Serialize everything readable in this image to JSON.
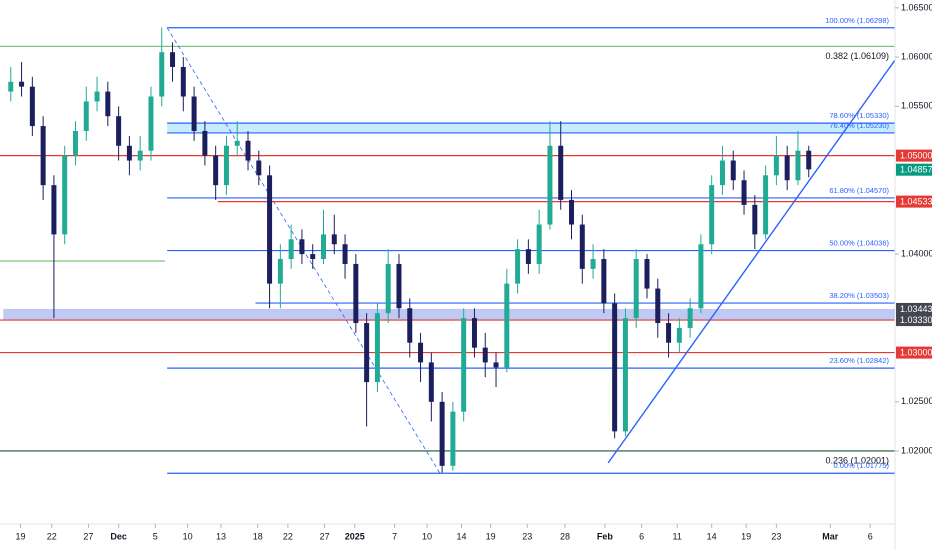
{
  "chart_data": {
    "type": "candlestick",
    "up_color": "#22ab94",
    "down_color": "#1b1f5e",
    "xlim": [
      -1,
      82
    ],
    "ylim": [
      1.013,
      1.0658
    ],
    "xticks": [
      {
        "value": 0.9,
        "label": "19"
      },
      {
        "value": 3.8,
        "label": "22"
      },
      {
        "value": 7.2,
        "label": "27"
      },
      {
        "value": 10,
        "label": "Dec"
      },
      {
        "value": 13.4,
        "label": "5"
      },
      {
        "value": 16.4,
        "label": "10"
      },
      {
        "value": 19.5,
        "label": "13"
      },
      {
        "value": 22.9,
        "label": "18"
      },
      {
        "value": 25.7,
        "label": "22"
      },
      {
        "value": 29.1,
        "label": "27"
      },
      {
        "value": 31.9,
        "label": "2025"
      },
      {
        "value": 35.6,
        "label": "7"
      },
      {
        "value": 38.6,
        "label": "10"
      },
      {
        "value": 41.8,
        "label": "14"
      },
      {
        "value": 44.5,
        "label": "19"
      },
      {
        "value": 47.9,
        "label": "23"
      },
      {
        "value": 51.4,
        "label": "28"
      },
      {
        "value": 55.1,
        "label": "Feb"
      },
      {
        "value": 58.5,
        "label": "6"
      },
      {
        "value": 61.8,
        "label": "11"
      },
      {
        "value": 65,
        "label": "14"
      },
      {
        "value": 68.2,
        "label": "19"
      },
      {
        "value": 71,
        "label": "23"
      },
      {
        "value": 76,
        "label": "Mar"
      },
      {
        "value": 79.7,
        "label": "6"
      }
    ],
    "yticks": [
      {
        "value": 1.065,
        "label": "1.06500"
      },
      {
        "value": 1.06,
        "label": "1.06000"
      },
      {
        "value": 1.055,
        "label": "1.05500"
      },
      {
        "value": 1.04,
        "label": "1.04000"
      },
      {
        "value": 1.025,
        "label": "1.02500"
      },
      {
        "value": 1.02,
        "label": "1.02000"
      }
    ],
    "open": [
      1.0565,
      1.0575,
      1.057,
      1.053,
      1.047,
      1.042,
      1.05,
      1.0525,
      1.0555,
      1.0565,
      1.054,
      1.051,
      1.0495,
      1.0505,
      1.056,
      1.0605,
      1.059,
      1.056,
      1.0525,
      1.05,
      1.047,
      1.051,
      1.0515,
      1.0495,
      1.048,
      1.037,
      1.0395,
      1.0415,
      1.04,
      1.0395,
      1.042,
      1.041,
      1.039,
      1.033,
      1.027,
      1.034,
      1.039,
      1.0345,
      1.031,
      1.029,
      1.025,
      1.0185,
      1.024,
      1.0335,
      1.0305,
      1.029,
      1.0285,
      1.037,
      1.0405,
      1.039,
      1.043,
      1.051,
      1.0455,
      1.043,
      1.0385,
      1.0395,
      1.035,
      1.022,
      1.0335,
      1.0395,
      1.0365,
      1.033,
      1.031,
      1.0325,
      1.0345,
      1.041,
      1.047,
      1.0495,
      1.0475,
      1.045,
      1.042,
      1.048,
      1.05,
      1.0475,
      1.0505
    ],
    "high": [
      1.059,
      1.0595,
      1.058,
      1.054,
      1.048,
      1.051,
      1.0535,
      1.057,
      1.058,
      1.0575,
      1.055,
      1.052,
      1.052,
      1.057,
      1.063,
      1.0615,
      1.06,
      1.057,
      1.0535,
      1.051,
      1.052,
      1.0535,
      1.0525,
      1.0505,
      1.049,
      1.041,
      1.043,
      1.0425,
      1.041,
      1.0445,
      1.044,
      1.042,
      1.04,
      1.034,
      1.035,
      1.0405,
      1.04,
      1.0355,
      1.032,
      1.03,
      1.026,
      1.025,
      1.0345,
      1.0345,
      1.032,
      1.03,
      1.0385,
      1.0415,
      1.0415,
      1.0445,
      1.0535,
      1.0535,
      1.0465,
      1.044,
      1.041,
      1.0405,
      1.036,
      1.0345,
      1.0405,
      1.04,
      1.0375,
      1.034,
      1.0335,
      1.0355,
      1.042,
      1.048,
      1.051,
      1.0505,
      1.0485,
      1.046,
      1.049,
      1.052,
      1.051,
      1.0525,
      1.051
    ],
    "low": [
      1.0555,
      1.056,
      1.052,
      1.0455,
      1.0335,
      1.041,
      1.049,
      1.0515,
      1.0545,
      1.053,
      1.0495,
      1.048,
      1.0485,
      1.0495,
      1.055,
      1.0575,
      1.0545,
      1.0515,
      1.049,
      1.0455,
      1.046,
      1.05,
      1.0485,
      1.047,
      1.0345,
      1.0345,
      1.0385,
      1.039,
      1.0385,
      1.039,
      1.04,
      1.0375,
      1.032,
      1.0225,
      1.026,
      1.033,
      1.0335,
      1.0295,
      1.027,
      1.023,
      1.0178,
      1.018,
      1.023,
      1.0295,
      1.0275,
      1.0265,
      1.028,
      1.036,
      1.038,
      1.038,
      1.0425,
      1.0445,
      1.0415,
      1.037,
      1.0375,
      1.034,
      1.0213,
      1.0215,
      1.0325,
      1.0355,
      1.0315,
      1.0295,
      1.03,
      1.0315,
      1.034,
      1.04,
      1.046,
      1.0465,
      1.044,
      1.0405,
      1.0415,
      1.047,
      1.0465,
      1.047,
      1.0478
    ],
    "close": [
      1.0575,
      1.057,
      1.053,
      1.047,
      1.042,
      1.05,
      1.0525,
      1.0555,
      1.0565,
      1.054,
      1.051,
      1.0495,
      1.0505,
      1.056,
      1.0605,
      1.059,
      1.056,
      1.0525,
      1.05,
      1.047,
      1.051,
      1.0515,
      1.0495,
      1.048,
      1.037,
      1.0395,
      1.0415,
      1.04,
      1.0395,
      1.042,
      1.041,
      1.039,
      1.033,
      1.027,
      1.034,
      1.039,
      1.0345,
      1.031,
      1.029,
      1.025,
      1.0185,
      1.024,
      1.0335,
      1.0305,
      1.029,
      1.0285,
      1.037,
      1.0405,
      1.039,
      1.043,
      1.051,
      1.0455,
      1.043,
      1.0385,
      1.0395,
      1.035,
      1.022,
      1.0335,
      1.0395,
      1.0365,
      1.033,
      1.031,
      1.0325,
      1.0345,
      1.041,
      1.047,
      1.0495,
      1.0475,
      1.045,
      1.042,
      1.048,
      1.05,
      1.0475,
      1.0505,
      1.0486
    ],
    "bands": [
      {
        "from": 14.5,
        "top": 1.0533,
        "bottom": 1.0523,
        "color": "#b3e5fc"
      },
      {
        "from": -0.7,
        "top": 1.03443,
        "bottom": 1.0333,
        "color": "#a9b8f0"
      }
    ],
    "levels": [
      {
        "price": 1.06298,
        "from": 14.5,
        "color": "#2962ff",
        "label": "100.00% (1.06298)",
        "fib": true
      },
      {
        "price": 1.0533,
        "from": 14.5,
        "color": "#2962ff",
        "label": "78.60% (1.05330)",
        "fib": true
      },
      {
        "price": 1.0523,
        "from": 14.5,
        "color": "#2962ff",
        "label": "76.40% (1.05230)",
        "fib": true
      },
      {
        "price": 1.0457,
        "from": 14.5,
        "color": "#2962ff",
        "label": "61.80% (1.04570)",
        "fib": true
      },
      {
        "price": 1.04036,
        "from": 14.5,
        "color": "#2962ff",
        "label": "50.00% (1.04036)",
        "fib": true
      },
      {
        "price": 1.03503,
        "from": 22.7,
        "color": "#2962ff",
        "label": "38.20% (1.03503)",
        "fib": true
      },
      {
        "price": 1.02842,
        "from": 14.5,
        "color": "#2962ff",
        "label": "23.60% (1.02842)",
        "fib": true
      },
      {
        "price": 1.01775,
        "from": 14.5,
        "color": "#2962ff",
        "label": "0.00% (1.01775)",
        "fib": true
      },
      {
        "price": 1.06109,
        "from": -1,
        "color": "#7cc47c",
        "label": "0.382 (1.06109)"
      },
      {
        "price": 1.02001,
        "from": -1,
        "color": "#1e5631",
        "label": "0.236 (1.02001)"
      },
      {
        "price": 1.0393,
        "from": -1,
        "to": 14.3,
        "color": "#7cc47c"
      },
      {
        "price": 1.05,
        "from": -1,
        "color": "#e53935"
      },
      {
        "price": 1.04533,
        "from": 19.2,
        "color": "#e53935"
      },
      {
        "price": 1.0333,
        "from": -1,
        "color": "#e53935"
      },
      {
        "price": 1.03,
        "from": -1,
        "color": "#e53935"
      }
    ],
    "trendlines": [
      {
        "x": [
          55.4,
          82
        ],
        "y": [
          1.0188,
          1.0597
        ],
        "color": "#2962ff"
      },
      {
        "x": [
          14.5,
          39.8
        ],
        "y": [
          1.06298,
          1.01775
        ],
        "color": "#2962ff",
        "dashed": true
      }
    ],
    "price_tags": [
      {
        "value": 1.05,
        "label": "1.05000",
        "color": "#e53935"
      },
      {
        "value": 1.04857,
        "label": "1.04857",
        "color": "#089981"
      },
      {
        "value": 1.04533,
        "label": "1.04533",
        "color": "#e53935"
      },
      {
        "value": 1.03443,
        "label": "1.03443",
        "color": "#434651"
      },
      {
        "value": 1.0333,
        "label": "1.03330",
        "color": "#434651"
      },
      {
        "value": 1.03,
        "label": "1.03000",
        "color": "#e53935"
      }
    ]
  }
}
